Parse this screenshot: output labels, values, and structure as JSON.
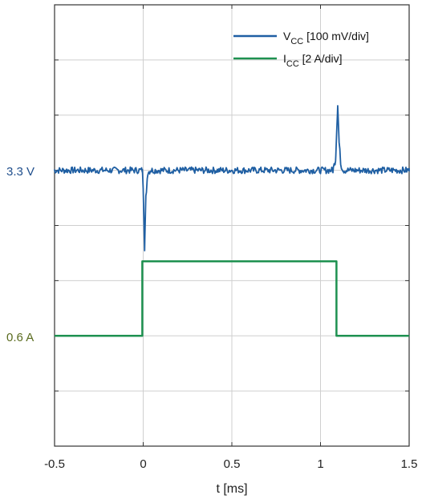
{
  "chart_data": {
    "type": "line",
    "xlabel": "t [ms]",
    "xlim": [
      -0.5,
      1.5
    ],
    "x_ticks": [
      "-0.5",
      "0",
      "0.5",
      "1",
      "1.5"
    ],
    "grid": true,
    "legend_position": "top-right",
    "level_labels": {
      "vcc": "3.3 V",
      "icc": "0.6 A"
    },
    "series": [
      {
        "name": "V_CC [100 mV/div]",
        "legend_main": "V",
        "legend_sub": "CC",
        "legend_rest": " [100 mV/div]",
        "color": "#1f5fa3",
        "unit": "V",
        "scale_per_div": 0.1,
        "reference": 3.3,
        "x": [
          -0.5,
          -0.005,
          0.0,
          0.008,
          0.015,
          0.025,
          0.04,
          1.07,
          1.085,
          1.097,
          1.105,
          1.115,
          1.13,
          1.5
        ],
        "values": [
          3.3,
          3.3,
          3.27,
          3.16,
          3.25,
          3.295,
          3.3,
          3.3,
          3.32,
          3.42,
          3.35,
          3.31,
          3.3,
          3.3
        ]
      },
      {
        "name": "I_CC [2 A/div]",
        "legend_main": "I",
        "legend_sub": "CC",
        "legend_rest": " [2 A/div]",
        "color": "#1e9150",
        "unit": "A",
        "scale_per_div": 2,
        "reference": 0.6,
        "x": [
          -0.5,
          -0.005,
          -0.005,
          1.09,
          1.09,
          1.5
        ],
        "values": [
          0.6,
          0.6,
          3.3,
          3.3,
          0.6,
          0.6
        ]
      }
    ],
    "colors": {
      "vcc_label": "#1f4e8c",
      "icc_label": "#5a6b1e",
      "grid": "#cfcfcf",
      "axis": "#333333"
    }
  }
}
